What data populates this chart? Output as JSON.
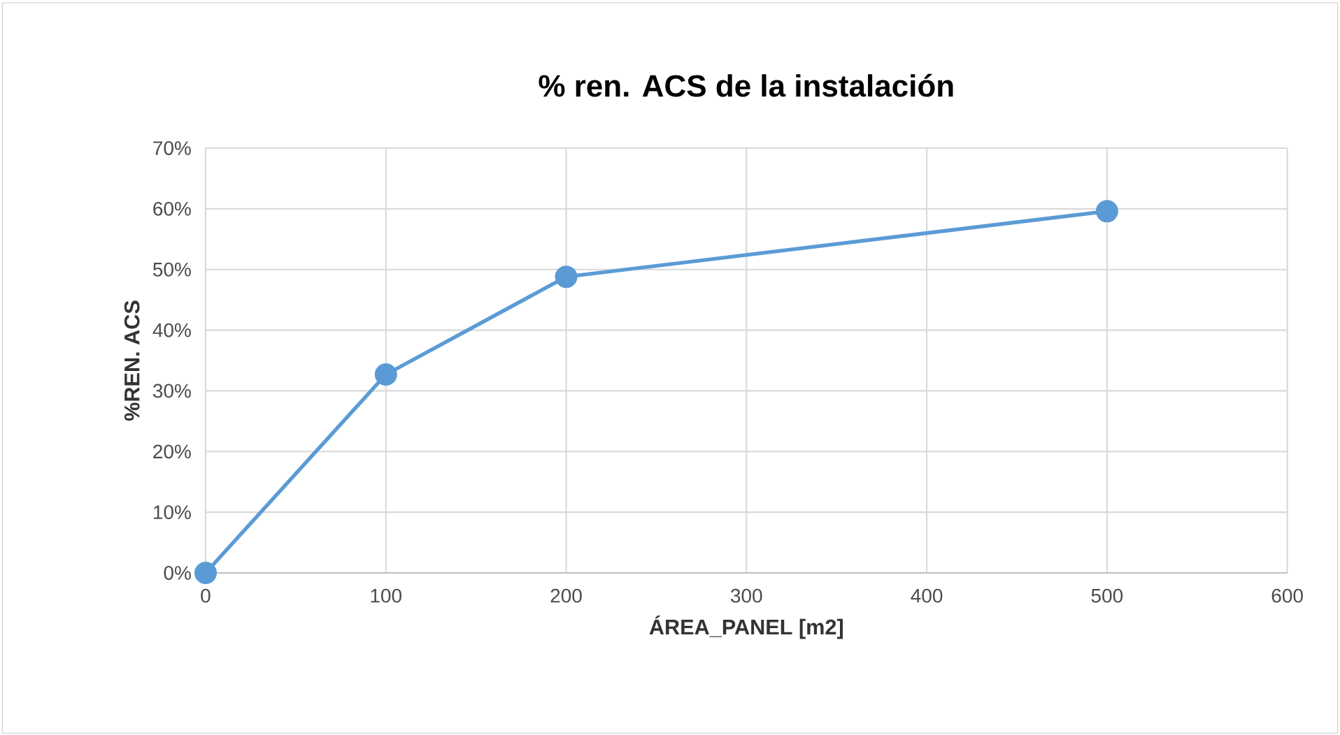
{
  "chart_data": {
    "type": "line",
    "title": "% ren. ACS de la instalación",
    "xlabel": "ÁREA_PANEL [m2]",
    "ylabel": "%REN. ACS",
    "x": [
      0,
      100,
      200,
      500
    ],
    "series": [
      {
        "color": "#5b9bd5",
        "values": [
          0,
          32.7,
          48.8,
          59.6
        ]
      }
    ],
    "xlim": [
      0,
      600
    ],
    "xticks": [
      0,
      100,
      200,
      300,
      400,
      500,
      600
    ],
    "ylim": [
      0,
      70
    ],
    "yticks": [
      {
        "value": 0,
        "label": "0%"
      },
      {
        "value": 10,
        "label": "10%"
      },
      {
        "value": 20,
        "label": "20%"
      },
      {
        "value": 30,
        "label": "30%"
      },
      {
        "value": 40,
        "label": "40%"
      },
      {
        "value": 50,
        "label": "50%"
      },
      {
        "value": 60,
        "label": "60%"
      },
      {
        "value": 70,
        "label": "70%"
      }
    ],
    "grid": true,
    "marker": "circle",
    "line_style": "solid"
  }
}
